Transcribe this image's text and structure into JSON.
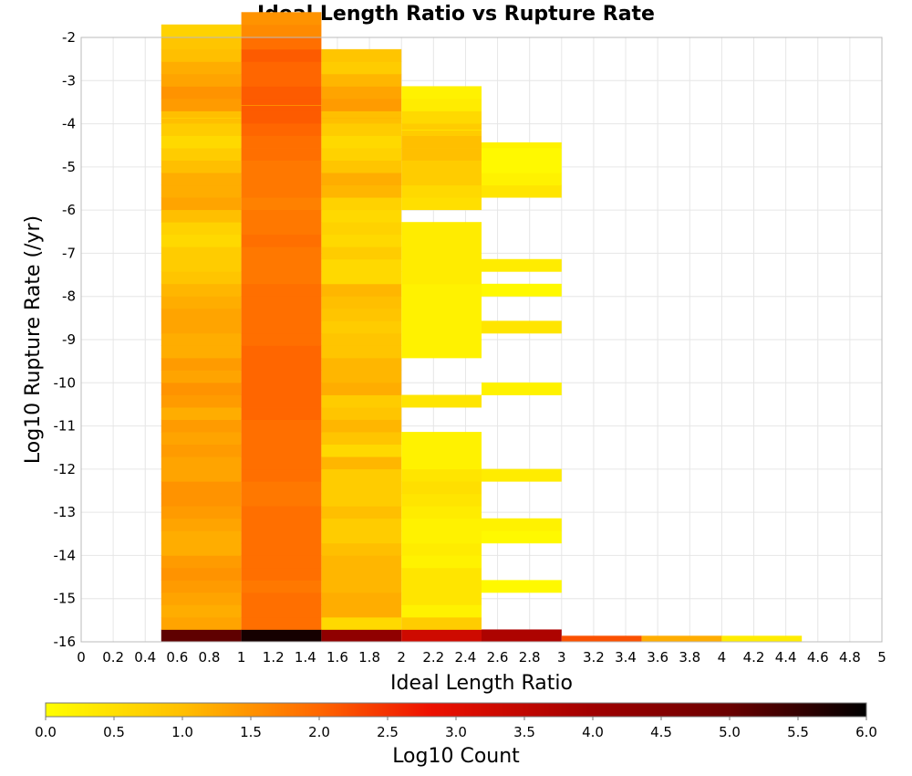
{
  "chart_data": {
    "type": "heatmap",
    "title": "Ideal Length Ratio vs Rupture Rate",
    "xlabel": "Ideal Length Ratio",
    "ylabel": "Log10 Rupture Rate (/yr)",
    "xlim": [
      0,
      5
    ],
    "ylim": [
      -16,
      -2
    ],
    "x_ticks": [
      "0",
      "0.2",
      "0.4",
      "0.6",
      "0.8",
      "1",
      "1.2",
      "1.4",
      "1.6",
      "1.8",
      "2",
      "2.2",
      "2.4",
      "2.6",
      "2.8",
      "3",
      "3.2",
      "3.4",
      "3.6",
      "3.8",
      "4",
      "4.2",
      "4.4",
      "4.6",
      "4.8",
      "5"
    ],
    "y_ticks": [
      "-2",
      "-3",
      "-4",
      "-5",
      "-6",
      "-7",
      "-8",
      "-9",
      "-10",
      "-11",
      "-12",
      "-13",
      "-14",
      "-15",
      "-16"
    ],
    "bin_width_x": 0.5,
    "bin_height_y": 0.286,
    "grid": true,
    "colorscale": {
      "label": "Log10 Count",
      "min": 0.0,
      "max": 6.0,
      "ticks": [
        "0.0",
        "0.5",
        "1.0",
        "1.5",
        "2.0",
        "2.5",
        "3.0",
        "3.5",
        "4.0",
        "4.5",
        "5.0",
        "5.5",
        "6.0"
      ],
      "stops": [
        {
          "value": 0.0,
          "color": "#ffff00"
        },
        {
          "value": 1.0,
          "color": "#ffbf00"
        },
        {
          "value": 2.0,
          "color": "#ff6600"
        },
        {
          "value": 2.8,
          "color": "#ee1100"
        },
        {
          "value": 4.0,
          "color": "#a00000"
        },
        {
          "value": 5.0,
          "color": "#6a0000"
        },
        {
          "value": 6.0,
          "color": "#000000"
        }
      ]
    },
    "columns": [
      {
        "x_range": [
          0.5,
          1.0
        ],
        "y_top": -3.86,
        "values": [
          5.1,
          1.3,
          1.2,
          1.3,
          1.4,
          1.5,
          1.4,
          1.2,
          1.2,
          1.3,
          1.4,
          1.5,
          1.5,
          1.3,
          1.3,
          1.4,
          1.3,
          1.4,
          1.2,
          1.4,
          1.5,
          1.3,
          1.4,
          1.2,
          1.2,
          1.3,
          1.3,
          1.2,
          1.1,
          0.9,
          0.8,
          0.8,
          0.6,
          0.7,
          1.0,
          1.3,
          1.2,
          1.2,
          1.0,
          0.8,
          0.6,
          0.8,
          1.0,
          1.4,
          1.5,
          1.3,
          1.2,
          1.0,
          0.9,
          0.7,
          0.5
        ]
      },
      {
        "x_range": [
          1.0,
          1.5
        ],
        "y_top": -3.57,
        "values": [
          5.8,
          1.9,
          1.9,
          1.9,
          1.8,
          1.9,
          1.9,
          1.9,
          1.9,
          1.9,
          1.9,
          1.8,
          1.8,
          1.9,
          1.9,
          1.9,
          1.9,
          1.9,
          2.0,
          2.0,
          2.0,
          2.0,
          2.0,
          2.0,
          1.9,
          1.9,
          1.9,
          1.9,
          1.9,
          1.8,
          1.8,
          1.8,
          1.9,
          1.8,
          1.8,
          1.7,
          1.8,
          1.8,
          1.8,
          1.9,
          1.9,
          2.0,
          2.1,
          2.1,
          2.1,
          2.0,
          2.0,
          2.1,
          1.9,
          1.6,
          1.5,
          1.0
        ]
      },
      {
        "x_range": [
          1.5,
          2.0
        ],
        "y_top": -3.86,
        "values": [
          4.3,
          0.6,
          1.2,
          1.2,
          1.1,
          1.1,
          1.1,
          1.0,
          0.8,
          0.8,
          1.0,
          0.8,
          0.8,
          0.8,
          1.1,
          0.6,
          0.9,
          1.1,
          0.9,
          0.8,
          1.2,
          1.1,
          1.1,
          0.9,
          0.9,
          0.8,
          0.9,
          1.0,
          1.1,
          0.6,
          0.6,
          0.8,
          0.6,
          0.7,
          0.6,
          0.7,
          1.1,
          1.2,
          0.9,
          0.7,
          0.6,
          0.8,
          1.0,
          1.4,
          1.3,
          1.1,
          0.8,
          0.9,
          1.1
        ]
      },
      {
        "x_range": [
          2.0,
          2.5
        ],
        "y_top": -4.14,
        "values": [
          3.3,
          0.8,
          0.2,
          0.4,
          0.4,
          0.4,
          0.2,
          0.3,
          0.2,
          0.2,
          0.3,
          0.4,
          0.5,
          0.4,
          0.2,
          0.2,
          0.2,
          null,
          null,
          0.4,
          null,
          null,
          null,
          0.2,
          0.2,
          0.2,
          0.2,
          0.2,
          0.2,
          0.3,
          0.3,
          0.3,
          0.3,
          0.3,
          null,
          0.5,
          0.6,
          0.8,
          0.8,
          1.0,
          1.0,
          0.8,
          0.6,
          0.3,
          0.2,
          0.1
        ]
      },
      {
        "x_range": [
          2.5,
          3.0
        ],
        "y_top": -4.43,
        "values": [
          3.8,
          null,
          null,
          null,
          0.1,
          null,
          null,
          null,
          0.1,
          0.2,
          null,
          null,
          null,
          0.3,
          null,
          null,
          null,
          null,
          null,
          null,
          0.2,
          null,
          null,
          null,
          null,
          0.4,
          null,
          null,
          0.1,
          null,
          0.3,
          null,
          null,
          null,
          null,
          null,
          0.4,
          0.2,
          0.1,
          0.1,
          0.2
        ]
      },
      {
        "x_range": [
          3.0,
          3.5
        ],
        "y_top": -15.86,
        "values": [
          2.2
        ]
      },
      {
        "x_range": [
          3.5,
          4.0
        ],
        "y_top": -15.86,
        "values": [
          1.2
        ]
      },
      {
        "x_range": [
          4.0,
          4.5
        ],
        "y_top": -15.86,
        "values": [
          0.3
        ]
      }
    ]
  }
}
